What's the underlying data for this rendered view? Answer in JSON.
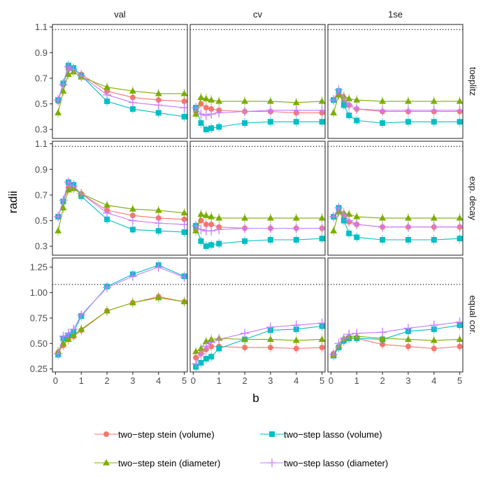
{
  "chart_data": {
    "type": "line",
    "xlabel": "b",
    "ylabel": "radii",
    "columns": [
      "val",
      "cv",
      "1se"
    ],
    "rows": [
      "toeplitz",
      "exp. decay",
      "equal cor."
    ],
    "x": [
      0.1,
      0.3,
      0.5,
      0.7,
      1,
      2,
      3,
      4,
      5
    ],
    "x_ticks": [
      0,
      1,
      2,
      3,
      4,
      5
    ],
    "x_tick_labels": [
      "0",
      "1",
      "2",
      "3",
      "4",
      "5"
    ],
    "row_axes": [
      {
        "ylim": [
          0.23,
          1.12
        ],
        "ticks": [
          0.3,
          0.5,
          0.7,
          0.9,
          1.1
        ],
        "tick_labels": [
          "0.3",
          "0.5",
          "0.7",
          "0.9",
          "1.1"
        ]
      },
      {
        "ylim": [
          0.23,
          1.12
        ],
        "ticks": [
          0.3,
          0.5,
          0.7,
          0.9,
          1.1
        ],
        "tick_labels": [
          "0.3",
          "0.5",
          "0.7",
          "0.9",
          "1.1"
        ]
      },
      {
        "ylim": [
          0.22,
          1.34
        ],
        "ticks": [
          0.25,
          0.5,
          0.75,
          1.0,
          1.25
        ],
        "tick_labels": [
          "0.25",
          "0.50",
          "0.75",
          "1.00",
          "1.25"
        ]
      }
    ],
    "reference_line": 1.08,
    "series_meta": [
      {
        "name": "two−step stein (volume)",
        "color": "#F8766D",
        "marker": "circle"
      },
      {
        "name": "two−step lasso (volume)",
        "color": "#00BFC4",
        "marker": "square"
      },
      {
        "name": "two−step stein (diameter)",
        "color": "#7CAE00",
        "marker": "triangle"
      },
      {
        "name": "two−step lasso (diameter)",
        "color": "#C77CFF",
        "marker": "plus"
      }
    ],
    "panels": [
      [
        [
          [
            0.52,
            0.65,
            0.77,
            0.77,
            0.73,
            0.6,
            0.55,
            0.53,
            0.52
          ],
          [
            0.53,
            0.66,
            0.8,
            0.78,
            0.72,
            0.52,
            0.46,
            0.43,
            0.4
          ],
          [
            0.43,
            0.6,
            0.73,
            0.75,
            0.71,
            0.63,
            0.6,
            0.58,
            0.58
          ],
          [
            0.53,
            0.65,
            0.79,
            0.77,
            0.72,
            0.57,
            0.51,
            0.49,
            0.47
          ]
        ],
        [
          [
            0.44,
            0.5,
            0.47,
            0.46,
            0.45,
            0.44,
            0.44,
            0.43,
            0.43
          ],
          [
            0.47,
            0.35,
            0.3,
            0.31,
            0.32,
            0.35,
            0.36,
            0.36,
            0.36
          ],
          [
            0.42,
            0.55,
            0.54,
            0.53,
            0.52,
            0.52,
            0.52,
            0.51,
            0.52
          ],
          [
            0.47,
            0.42,
            0.41,
            0.42,
            0.43,
            0.44,
            0.45,
            0.45,
            0.45
          ]
        ],
        [
          [
            0.53,
            0.57,
            0.52,
            0.49,
            0.46,
            0.44,
            0.44,
            0.44,
            0.44
          ],
          [
            0.53,
            0.6,
            0.49,
            0.41,
            0.37,
            0.35,
            0.36,
            0.36,
            0.36
          ],
          [
            0.43,
            0.57,
            0.56,
            0.54,
            0.53,
            0.52,
            0.52,
            0.52,
            0.52
          ],
          [
            0.53,
            0.61,
            0.55,
            0.49,
            0.46,
            0.45,
            0.45,
            0.45,
            0.45
          ]
        ]
      ],
      [
        [
          [
            0.53,
            0.65,
            0.76,
            0.76,
            0.71,
            0.58,
            0.54,
            0.52,
            0.51
          ],
          [
            0.53,
            0.65,
            0.8,
            0.78,
            0.69,
            0.51,
            0.43,
            0.42,
            0.41
          ],
          [
            0.42,
            0.6,
            0.74,
            0.75,
            0.71,
            0.62,
            0.59,
            0.58,
            0.56
          ],
          [
            0.53,
            0.66,
            0.8,
            0.77,
            0.71,
            0.56,
            0.5,
            0.48,
            0.47
          ]
        ],
        [
          [
            0.43,
            0.5,
            0.47,
            0.47,
            0.45,
            0.44,
            0.44,
            0.44,
            0.44
          ],
          [
            0.46,
            0.34,
            0.3,
            0.31,
            0.32,
            0.34,
            0.35,
            0.35,
            0.36
          ],
          [
            0.42,
            0.55,
            0.54,
            0.53,
            0.52,
            0.52,
            0.52,
            0.52,
            0.52
          ],
          [
            0.46,
            0.43,
            0.42,
            0.42,
            0.43,
            0.44,
            0.44,
            0.44,
            0.44
          ]
        ],
        [
          [
            0.53,
            0.57,
            0.52,
            0.49,
            0.47,
            0.45,
            0.45,
            0.45,
            0.45
          ],
          [
            0.53,
            0.6,
            0.5,
            0.4,
            0.37,
            0.35,
            0.35,
            0.35,
            0.36
          ],
          [
            0.42,
            0.57,
            0.56,
            0.55,
            0.53,
            0.52,
            0.52,
            0.52,
            0.52
          ],
          [
            0.53,
            0.6,
            0.55,
            0.5,
            0.47,
            0.45,
            0.45,
            0.45,
            0.45
          ]
        ]
      ],
      [
        [
          [
            0.41,
            0.48,
            0.54,
            0.57,
            0.63,
            0.82,
            0.9,
            0.96,
            0.91
          ],
          [
            0.39,
            0.55,
            0.58,
            0.61,
            0.77,
            1.06,
            1.18,
            1.27,
            1.16
          ],
          [
            0.42,
            0.5,
            0.54,
            0.58,
            0.64,
            0.82,
            0.9,
            0.95,
            0.91
          ],
          [
            0.4,
            0.57,
            0.6,
            0.64,
            0.78,
            1.05,
            1.16,
            1.25,
            1.15
          ]
        ],
        [
          [
            0.36,
            0.4,
            0.44,
            0.47,
            0.47,
            0.46,
            0.46,
            0.45,
            0.46
          ],
          [
            0.27,
            0.31,
            0.35,
            0.37,
            0.45,
            0.54,
            0.63,
            0.64,
            0.67
          ],
          [
            0.42,
            0.45,
            0.52,
            0.54,
            0.55,
            0.54,
            0.54,
            0.53,
            0.54
          ],
          [
            0.3,
            0.4,
            0.47,
            0.51,
            0.54,
            0.6,
            0.66,
            0.68,
            0.7
          ]
        ],
        [
          [
            0.4,
            0.46,
            0.52,
            0.56,
            0.55,
            0.49,
            0.47,
            0.45,
            0.47
          ],
          [
            0.38,
            0.46,
            0.53,
            0.55,
            0.55,
            0.54,
            0.62,
            0.64,
            0.68
          ],
          [
            0.39,
            0.48,
            0.55,
            0.57,
            0.57,
            0.55,
            0.54,
            0.53,
            0.54
          ],
          [
            0.39,
            0.5,
            0.55,
            0.59,
            0.6,
            0.61,
            0.65,
            0.68,
            0.71
          ]
        ]
      ]
    ]
  }
}
